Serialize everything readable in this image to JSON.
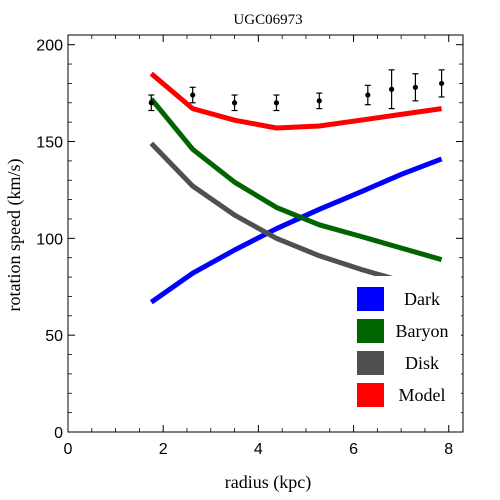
{
  "chart_data": {
    "type": "line",
    "title": "UGC06973",
    "xlabel": "radius (kpc)",
    "ylabel": "rotation speed (km/s)",
    "xlim": [
      0,
      8.3
    ],
    "ylim": [
      0,
      205
    ],
    "xticks": [
      0,
      2,
      4,
      6,
      8
    ],
    "yticks": [
      0,
      50,
      100,
      150,
      200
    ],
    "x_tick_labels": [
      "0",
      "2",
      "4",
      "6",
      "8"
    ],
    "y_tick_labels": [
      "0",
      "50",
      "100",
      "150",
      "200"
    ],
    "grid": false,
    "legend_position": "bottom-right",
    "x": [
      1.75,
      2.62,
      3.5,
      4.38,
      5.28,
      6.15,
      7.0,
      7.85
    ],
    "series": [
      {
        "name": "Dark",
        "color": "#0000ff",
        "values": [
          67,
          82,
          94,
          105,
          115,
          124,
          133,
          141
        ]
      },
      {
        "name": "Baryon",
        "color": "#006400",
        "values": [
          172,
          146,
          129,
          116,
          107,
          101,
          95,
          89
        ]
      },
      {
        "name": "Disk",
        "color": "#505050",
        "values": [
          149,
          127,
          112,
          100,
          91,
          84,
          78,
          73
        ]
      },
      {
        "name": "Model",
        "color": "#ff0000",
        "values": [
          185,
          167,
          161,
          157,
          158,
          161,
          164,
          167
        ]
      }
    ],
    "observations": {
      "x": [
        1.75,
        2.62,
        3.5,
        4.38,
        5.28,
        6.3,
        6.8,
        7.3,
        7.85
      ],
      "y": [
        170,
        174,
        170,
        170,
        171,
        174,
        177,
        178,
        180
      ],
      "err": [
        4,
        4,
        4,
        4,
        4,
        5,
        10,
        7,
        7
      ]
    }
  }
}
